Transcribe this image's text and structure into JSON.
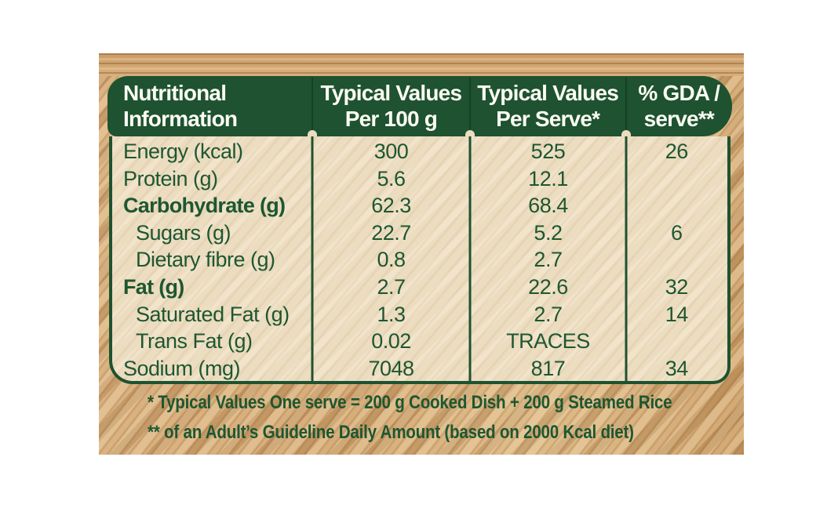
{
  "colors": {
    "label_green": "#1e5230",
    "text_green": "#1d5731",
    "body_cream": "#ecdcc0",
    "wood_tan": "#d6ab79"
  },
  "table": {
    "header": {
      "col1_line1": "Nutritional",
      "col1_line2": "Information",
      "col2_line1": "Typical Values",
      "col2_line2": "Per 100 g",
      "col3_line1": "Typical Values",
      "col3_line2": "Per Serve*",
      "col4_line1": "% GDA /",
      "col4_line2": "serve**"
    },
    "rows": [
      {
        "label": "Energy (kcal)",
        "per100": "300",
        "serve": "525",
        "gda": "26"
      },
      {
        "label": "Protein (g)",
        "per100": "5.6",
        "serve": "12.1",
        "gda": ""
      },
      {
        "label": "Carbohydrate (g)",
        "per100": "62.3",
        "serve": "68.4",
        "gda": ""
      },
      {
        "label": "Sugars (g)",
        "per100": "22.7",
        "serve": "5.2",
        "gda": "6"
      },
      {
        "label": "Dietary fibre (g)",
        "per100": "0.8",
        "serve": "2.7",
        "gda": ""
      },
      {
        "label": "Fat (g)",
        "per100": "2.7",
        "serve": "22.6",
        "gda": "32"
      },
      {
        "label": "Saturated Fat (g)",
        "per100": "1.3",
        "serve": "2.7",
        "gda": "14"
      },
      {
        "label": "Trans Fat (g)",
        "per100": "0.02",
        "serve": "TRACES",
        "gda": ""
      },
      {
        "label": "Sodium (mg)",
        "per100": "7048",
        "serve": "817",
        "gda": "34"
      }
    ]
  },
  "footnotes": {
    "serve_note": "* Typical Values One serve = 200 g Cooked Dish + 200 g Steamed Rice",
    "gda_note": "** of an Adult’s Guideline Daily Amount (based on 2000 Kcal diet)"
  }
}
